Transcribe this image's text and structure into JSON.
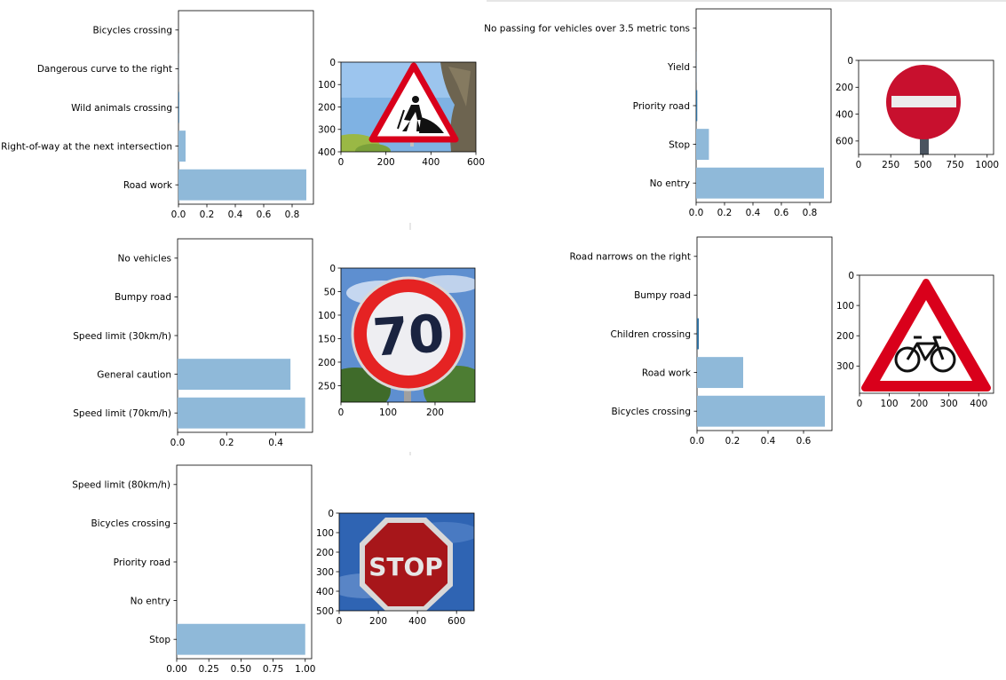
{
  "chart_data": [
    {
      "type": "bar",
      "orientation": "horizontal",
      "categories": [
        "Road work",
        "Right-of-way at the next intersection",
        "Wild animals crossing",
        "Dangerous curve to the right",
        "Bicycles crossing"
      ],
      "values": [
        0.9,
        0.05,
        0.005,
        0.001,
        0.0
      ],
      "xlim": [
        0,
        0.95
      ],
      "xticks": [
        "0.0",
        "0.2",
        "0.4",
        "0.6",
        "0.8"
      ],
      "image": {
        "name": "road-work-sign-image",
        "xlim": [
          0,
          600
        ],
        "ylim": [
          400,
          0
        ],
        "xticks": [
          "0",
          "200",
          "400",
          "600"
        ],
        "yticks": [
          "0",
          "100",
          "200",
          "300",
          "400"
        ]
      }
    },
    {
      "type": "bar",
      "orientation": "horizontal",
      "categories": [
        "No entry",
        "Stop",
        "Priority road",
        "Yield",
        "No passing for vehicles over 3.5 metric tons"
      ],
      "values": [
        0.9,
        0.09,
        0.008,
        0.001,
        0.0
      ],
      "xlim": [
        0,
        0.95
      ],
      "xticks": [
        "0.0",
        "0.2",
        "0.4",
        "0.6",
        "0.8"
      ],
      "image": {
        "name": "no-entry-sign-image",
        "xlim": [
          0,
          1050
        ],
        "ylim": [
          700,
          0
        ],
        "xticks": [
          "0",
          "250",
          "500",
          "750",
          "1000"
        ],
        "yticks": [
          "0",
          "200",
          "400",
          "600"
        ]
      }
    },
    {
      "type": "bar",
      "orientation": "horizontal",
      "categories": [
        "Speed limit (70km/h)",
        "General caution",
        "Speed limit (30km/h)",
        "Bumpy road",
        "No vehicles"
      ],
      "values": [
        0.52,
        0.46,
        0.0,
        0.0,
        0.0
      ],
      "xlim": [
        0,
        0.55
      ],
      "xticks": [
        "0.0",
        "0.2",
        "0.4"
      ],
      "image": {
        "name": "speed-limit-70-sign-image",
        "xlim": [
          0,
          285
        ],
        "ylim": [
          285,
          0
        ],
        "xticks": [
          "0",
          "100",
          "200"
        ],
        "yticks": [
          "0",
          "50",
          "100",
          "150",
          "200",
          "250"
        ]
      }
    },
    {
      "type": "bar",
      "orientation": "horizontal",
      "categories": [
        "Bicycles crossing",
        "Road work",
        "Children crossing",
        "Bumpy road",
        "Road narrows on the right"
      ],
      "values": [
        0.72,
        0.26,
        0.01,
        0.0,
        0.0
      ],
      "xlim": [
        0,
        0.76
      ],
      "xticks": [
        "0.0",
        "0.2",
        "0.4",
        "0.6"
      ],
      "image": {
        "name": "bicycles-crossing-sign-image",
        "xlim": [
          0,
          450
        ],
        "ylim": [
          390,
          0
        ],
        "xticks": [
          "0",
          "100",
          "200",
          "300",
          "400"
        ],
        "yticks": [
          "0",
          "100",
          "200",
          "300"
        ]
      }
    },
    {
      "type": "bar",
      "orientation": "horizontal",
      "categories": [
        "Stop",
        "No entry",
        "Priority road",
        "Bicycles crossing",
        "Speed limit (80km/h)"
      ],
      "values": [
        1.0,
        0.0,
        0.0,
        0.0,
        0.0
      ],
      "xlim": [
        0,
        1.05
      ],
      "xticks": [
        "0.00",
        "0.25",
        "0.50",
        "0.75",
        "1.00"
      ],
      "image": {
        "name": "stop-sign-image",
        "xlim": [
          0,
          690
        ],
        "ylim": [
          500,
          0
        ],
        "xticks": [
          "0",
          "200",
          "400",
          "600"
        ],
        "yticks": [
          "0",
          "100",
          "200",
          "300",
          "400",
          "500"
        ]
      }
    }
  ],
  "colors": {
    "bar": "#8fb9d9",
    "small_bar": "#2f6f9f",
    "axis": "#000000",
    "sign_red": "#d9001b",
    "stop_red": "#b0161c",
    "sky": "#5e8fd0"
  },
  "signs": {
    "speed_limit_text": "70",
    "stop_text": "STOP"
  }
}
